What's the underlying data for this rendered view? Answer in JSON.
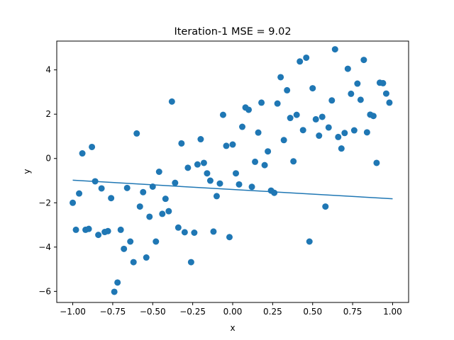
{
  "chart_data": {
    "type": "scatter",
    "title": "Iteration-1 MSE = 9.02",
    "xlabel": "x",
    "ylabel": "y",
    "xlim": [
      -1.1,
      1.1
    ],
    "ylim": [
      -6.5,
      5.3
    ],
    "xticks": [
      -1.0,
      -0.75,
      -0.5,
      -0.25,
      0.0,
      0.25,
      0.5,
      0.75,
      1.0
    ],
    "xtick_labels": [
      "−1.00",
      "−0.75",
      "−0.50",
      "−0.25",
      "0.00",
      "0.25",
      "0.50",
      "0.75",
      "1.00"
    ],
    "yticks": [
      -6,
      -4,
      -2,
      0,
      2,
      4
    ],
    "ytick_labels": [
      "−6",
      "−4",
      "−2",
      "0",
      "2",
      "4"
    ],
    "grid": false,
    "colors": {
      "points": "#1f77b4",
      "line": "#1f77b4",
      "axes": "#000000"
    },
    "fit_line": {
      "x": [
        -1.0,
        1.0
      ],
      "y": [
        -0.98,
        -1.82
      ]
    },
    "points": [
      {
        "x": -1.0,
        "y": -2.0
      },
      {
        "x": -0.98,
        "y": -3.22
      },
      {
        "x": -0.96,
        "y": -1.58
      },
      {
        "x": -0.94,
        "y": 0.23
      },
      {
        "x": -0.92,
        "y": -3.22
      },
      {
        "x": -0.9,
        "y": -3.18
      },
      {
        "x": -0.88,
        "y": 0.52
      },
      {
        "x": -0.86,
        "y": -1.03
      },
      {
        "x": -0.84,
        "y": -3.45
      },
      {
        "x": -0.82,
        "y": -1.35
      },
      {
        "x": -0.8,
        "y": -3.32
      },
      {
        "x": -0.78,
        "y": -3.28
      },
      {
        "x": -0.76,
        "y": -1.79
      },
      {
        "x": -0.74,
        "y": -6.02
      },
      {
        "x": -0.72,
        "y": -5.6
      },
      {
        "x": -0.7,
        "y": -3.22
      },
      {
        "x": -0.68,
        "y": -4.08
      },
      {
        "x": -0.66,
        "y": -1.33
      },
      {
        "x": -0.64,
        "y": -3.75
      },
      {
        "x": -0.62,
        "y": -4.68
      },
      {
        "x": -0.6,
        "y": 1.13
      },
      {
        "x": -0.58,
        "y": -2.17
      },
      {
        "x": -0.56,
        "y": -1.52
      },
      {
        "x": -0.54,
        "y": -4.47
      },
      {
        "x": -0.52,
        "y": -2.63
      },
      {
        "x": -0.5,
        "y": -1.27
      },
      {
        "x": -0.48,
        "y": -3.75
      },
      {
        "x": -0.46,
        "y": -0.6
      },
      {
        "x": -0.44,
        "y": -2.5
      },
      {
        "x": -0.42,
        "y": -1.82
      },
      {
        "x": -0.4,
        "y": -2.38
      },
      {
        "x": -0.38,
        "y": 2.57
      },
      {
        "x": -0.36,
        "y": -1.1
      },
      {
        "x": -0.34,
        "y": -3.12
      },
      {
        "x": -0.32,
        "y": 0.68
      },
      {
        "x": -0.3,
        "y": -3.33
      },
      {
        "x": -0.28,
        "y": -0.42
      },
      {
        "x": -0.26,
        "y": -4.68
      },
      {
        "x": -0.24,
        "y": -3.35
      },
      {
        "x": -0.22,
        "y": -0.27
      },
      {
        "x": -0.2,
        "y": 0.87
      },
      {
        "x": -0.18,
        "y": -0.2
      },
      {
        "x": -0.16,
        "y": -0.67
      },
      {
        "x": -0.14,
        "y": -1.0
      },
      {
        "x": -0.12,
        "y": -3.3
      },
      {
        "x": -0.1,
        "y": -1.7
      },
      {
        "x": -0.08,
        "y": -1.13
      },
      {
        "x": -0.06,
        "y": 1.97
      },
      {
        "x": -0.04,
        "y": 0.57
      },
      {
        "x": -0.02,
        "y": -3.55
      },
      {
        "x": 0.0,
        "y": 0.63
      },
      {
        "x": 0.02,
        "y": -0.67
      },
      {
        "x": 0.04,
        "y": -1.17
      },
      {
        "x": 0.06,
        "y": 1.43
      },
      {
        "x": 0.08,
        "y": 2.3
      },
      {
        "x": 0.1,
        "y": 2.2
      },
      {
        "x": 0.12,
        "y": -1.28
      },
      {
        "x": 0.14,
        "y": -0.15
      },
      {
        "x": 0.16,
        "y": 1.17
      },
      {
        "x": 0.18,
        "y": 2.52
      },
      {
        "x": 0.2,
        "y": -0.3
      },
      {
        "x": 0.22,
        "y": 0.32
      },
      {
        "x": 0.24,
        "y": -1.45
      },
      {
        "x": 0.26,
        "y": -1.55
      },
      {
        "x": 0.28,
        "y": 2.48
      },
      {
        "x": 0.3,
        "y": 3.67
      },
      {
        "x": 0.32,
        "y": 0.83
      },
      {
        "x": 0.34,
        "y": 3.08
      },
      {
        "x": 0.36,
        "y": 1.83
      },
      {
        "x": 0.38,
        "y": -0.13
      },
      {
        "x": 0.4,
        "y": 1.97
      },
      {
        "x": 0.42,
        "y": 4.38
      },
      {
        "x": 0.44,
        "y": 1.28
      },
      {
        "x": 0.46,
        "y": 4.55
      },
      {
        "x": 0.48,
        "y": -3.75
      },
      {
        "x": 0.5,
        "y": 3.17
      },
      {
        "x": 0.52,
        "y": 1.77
      },
      {
        "x": 0.54,
        "y": 1.03
      },
      {
        "x": 0.56,
        "y": 1.88
      },
      {
        "x": 0.58,
        "y": -2.17
      },
      {
        "x": 0.6,
        "y": 1.4
      },
      {
        "x": 0.62,
        "y": 2.62
      },
      {
        "x": 0.64,
        "y": 4.93
      },
      {
        "x": 0.66,
        "y": 0.97
      },
      {
        "x": 0.68,
        "y": 0.45
      },
      {
        "x": 0.7,
        "y": 1.15
      },
      {
        "x": 0.72,
        "y": 4.05
      },
      {
        "x": 0.74,
        "y": 2.92
      },
      {
        "x": 0.76,
        "y": 1.27
      },
      {
        "x": 0.78,
        "y": 3.38
      },
      {
        "x": 0.8,
        "y": 2.65
      },
      {
        "x": 0.82,
        "y": 4.45
      },
      {
        "x": 0.84,
        "y": 1.18
      },
      {
        "x": 0.86,
        "y": 1.98
      },
      {
        "x": 0.88,
        "y": 1.92
      },
      {
        "x": 0.9,
        "y": -0.2
      },
      {
        "x": 0.92,
        "y": 3.42
      },
      {
        "x": 0.94,
        "y": 3.4
      },
      {
        "x": 0.96,
        "y": 2.93
      },
      {
        "x": 0.98,
        "y": 2.52
      }
    ]
  }
}
